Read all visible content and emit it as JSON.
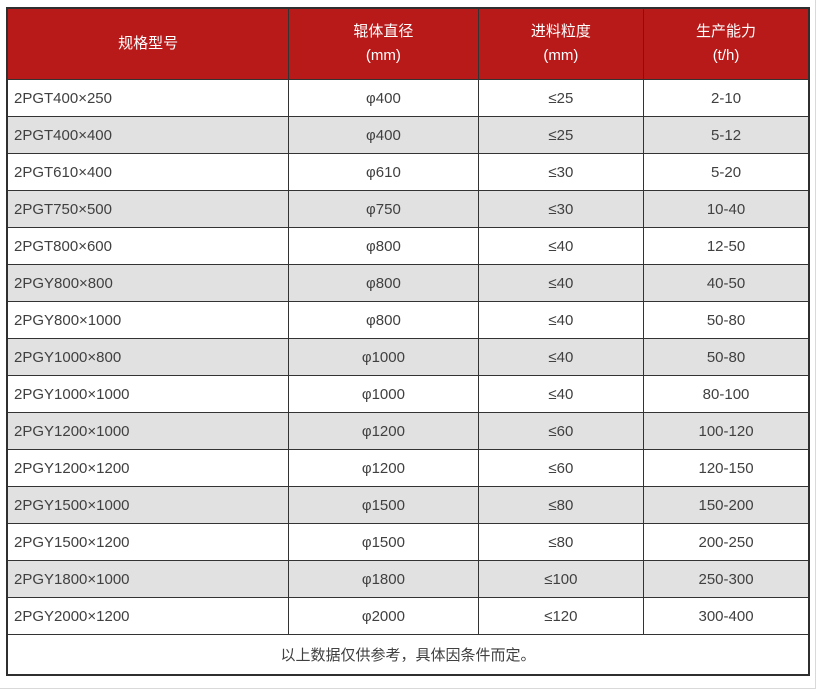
{
  "colors": {
    "header_background": "#b81a1a",
    "header_text": "#ffffff",
    "row_alt_background": "#e1e1e1",
    "row_background": "#ffffff",
    "grid_border": "#333333",
    "body_text": "#404040"
  },
  "table": {
    "columns": [
      {
        "label": "规格型号",
        "unit": ""
      },
      {
        "label": "辊体直径",
        "unit": "(mm)"
      },
      {
        "label": "进料粒度",
        "unit": "(mm)"
      },
      {
        "label": "生产能力",
        "unit": "(t/h)"
      }
    ],
    "rows": [
      {
        "model": "2PGT400×250",
        "roller_diameter": "φ400",
        "feed_size": "≤25",
        "capacity": "2-10"
      },
      {
        "model": "2PGT400×400",
        "roller_diameter": "φ400",
        "feed_size": "≤25",
        "capacity": "5-12"
      },
      {
        "model": "2PGT610×400",
        "roller_diameter": "φ610",
        "feed_size": "≤30",
        "capacity": "5-20"
      },
      {
        "model": "2PGT750×500",
        "roller_diameter": "φ750",
        "feed_size": "≤30",
        "capacity": "10-40"
      },
      {
        "model": "2PGT800×600",
        "roller_diameter": "φ800",
        "feed_size": "≤40",
        "capacity": "12-50"
      },
      {
        "model": "2PGY800×800",
        "roller_diameter": "φ800",
        "feed_size": "≤40",
        "capacity": "40-50"
      },
      {
        "model": "2PGY800×1000",
        "roller_diameter": "φ800",
        "feed_size": "≤40",
        "capacity": "50-80"
      },
      {
        "model": "2PGY1000×800",
        "roller_diameter": "φ1000",
        "feed_size": "≤40",
        "capacity": "50-80"
      },
      {
        "model": "2PGY1000×1000",
        "roller_diameter": "φ1000",
        "feed_size": "≤40",
        "capacity": "80-100"
      },
      {
        "model": "2PGY1200×1000",
        "roller_diameter": "φ1200",
        "feed_size": "≤60",
        "capacity": "100-120"
      },
      {
        "model": "2PGY1200×1200",
        "roller_diameter": "φ1200",
        "feed_size": "≤60",
        "capacity": "120-150"
      },
      {
        "model": "2PGY1500×1000",
        "roller_diameter": "φ1500",
        "feed_size": "≤80",
        "capacity": "150-200"
      },
      {
        "model": "2PGY1500×1200",
        "roller_diameter": "φ1500",
        "feed_size": "≤80",
        "capacity": "200-250"
      },
      {
        "model": "2PGY1800×1000",
        "roller_diameter": "φ1800",
        "feed_size": "≤100",
        "capacity": "250-300"
      },
      {
        "model": "2PGY2000×1200",
        "roller_diameter": "φ2000",
        "feed_size": "≤120",
        "capacity": "300-400"
      }
    ],
    "footnote": "以上数据仅供参考，具体因条件而定。"
  }
}
